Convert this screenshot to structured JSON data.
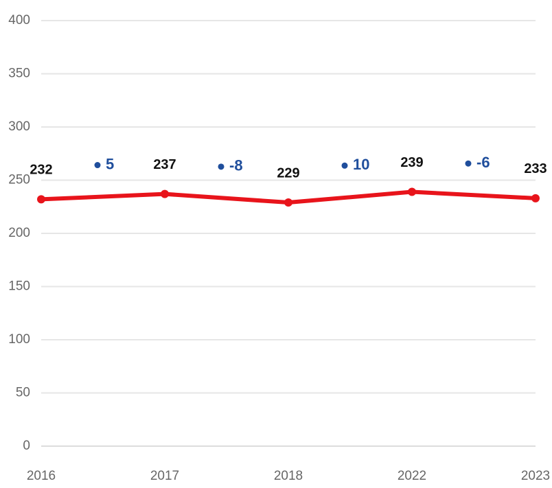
{
  "chart_data": {
    "type": "line",
    "categories": [
      "2016",
      "2017",
      "2018",
      "2022",
      "2023"
    ],
    "series": [
      {
        "color": "#e8141b",
        "values": [
          232,
          237,
          229,
          239,
          233
        ]
      }
    ],
    "changes": {
      "color": "#1f4e9c",
      "values": [
        5,
        -8,
        10,
        -6
      ]
    },
    "ylim": [
      0,
      400
    ],
    "yticks": [
      0,
      50,
      100,
      150,
      200,
      250,
      300,
      350,
      400
    ],
    "grid": true
  }
}
